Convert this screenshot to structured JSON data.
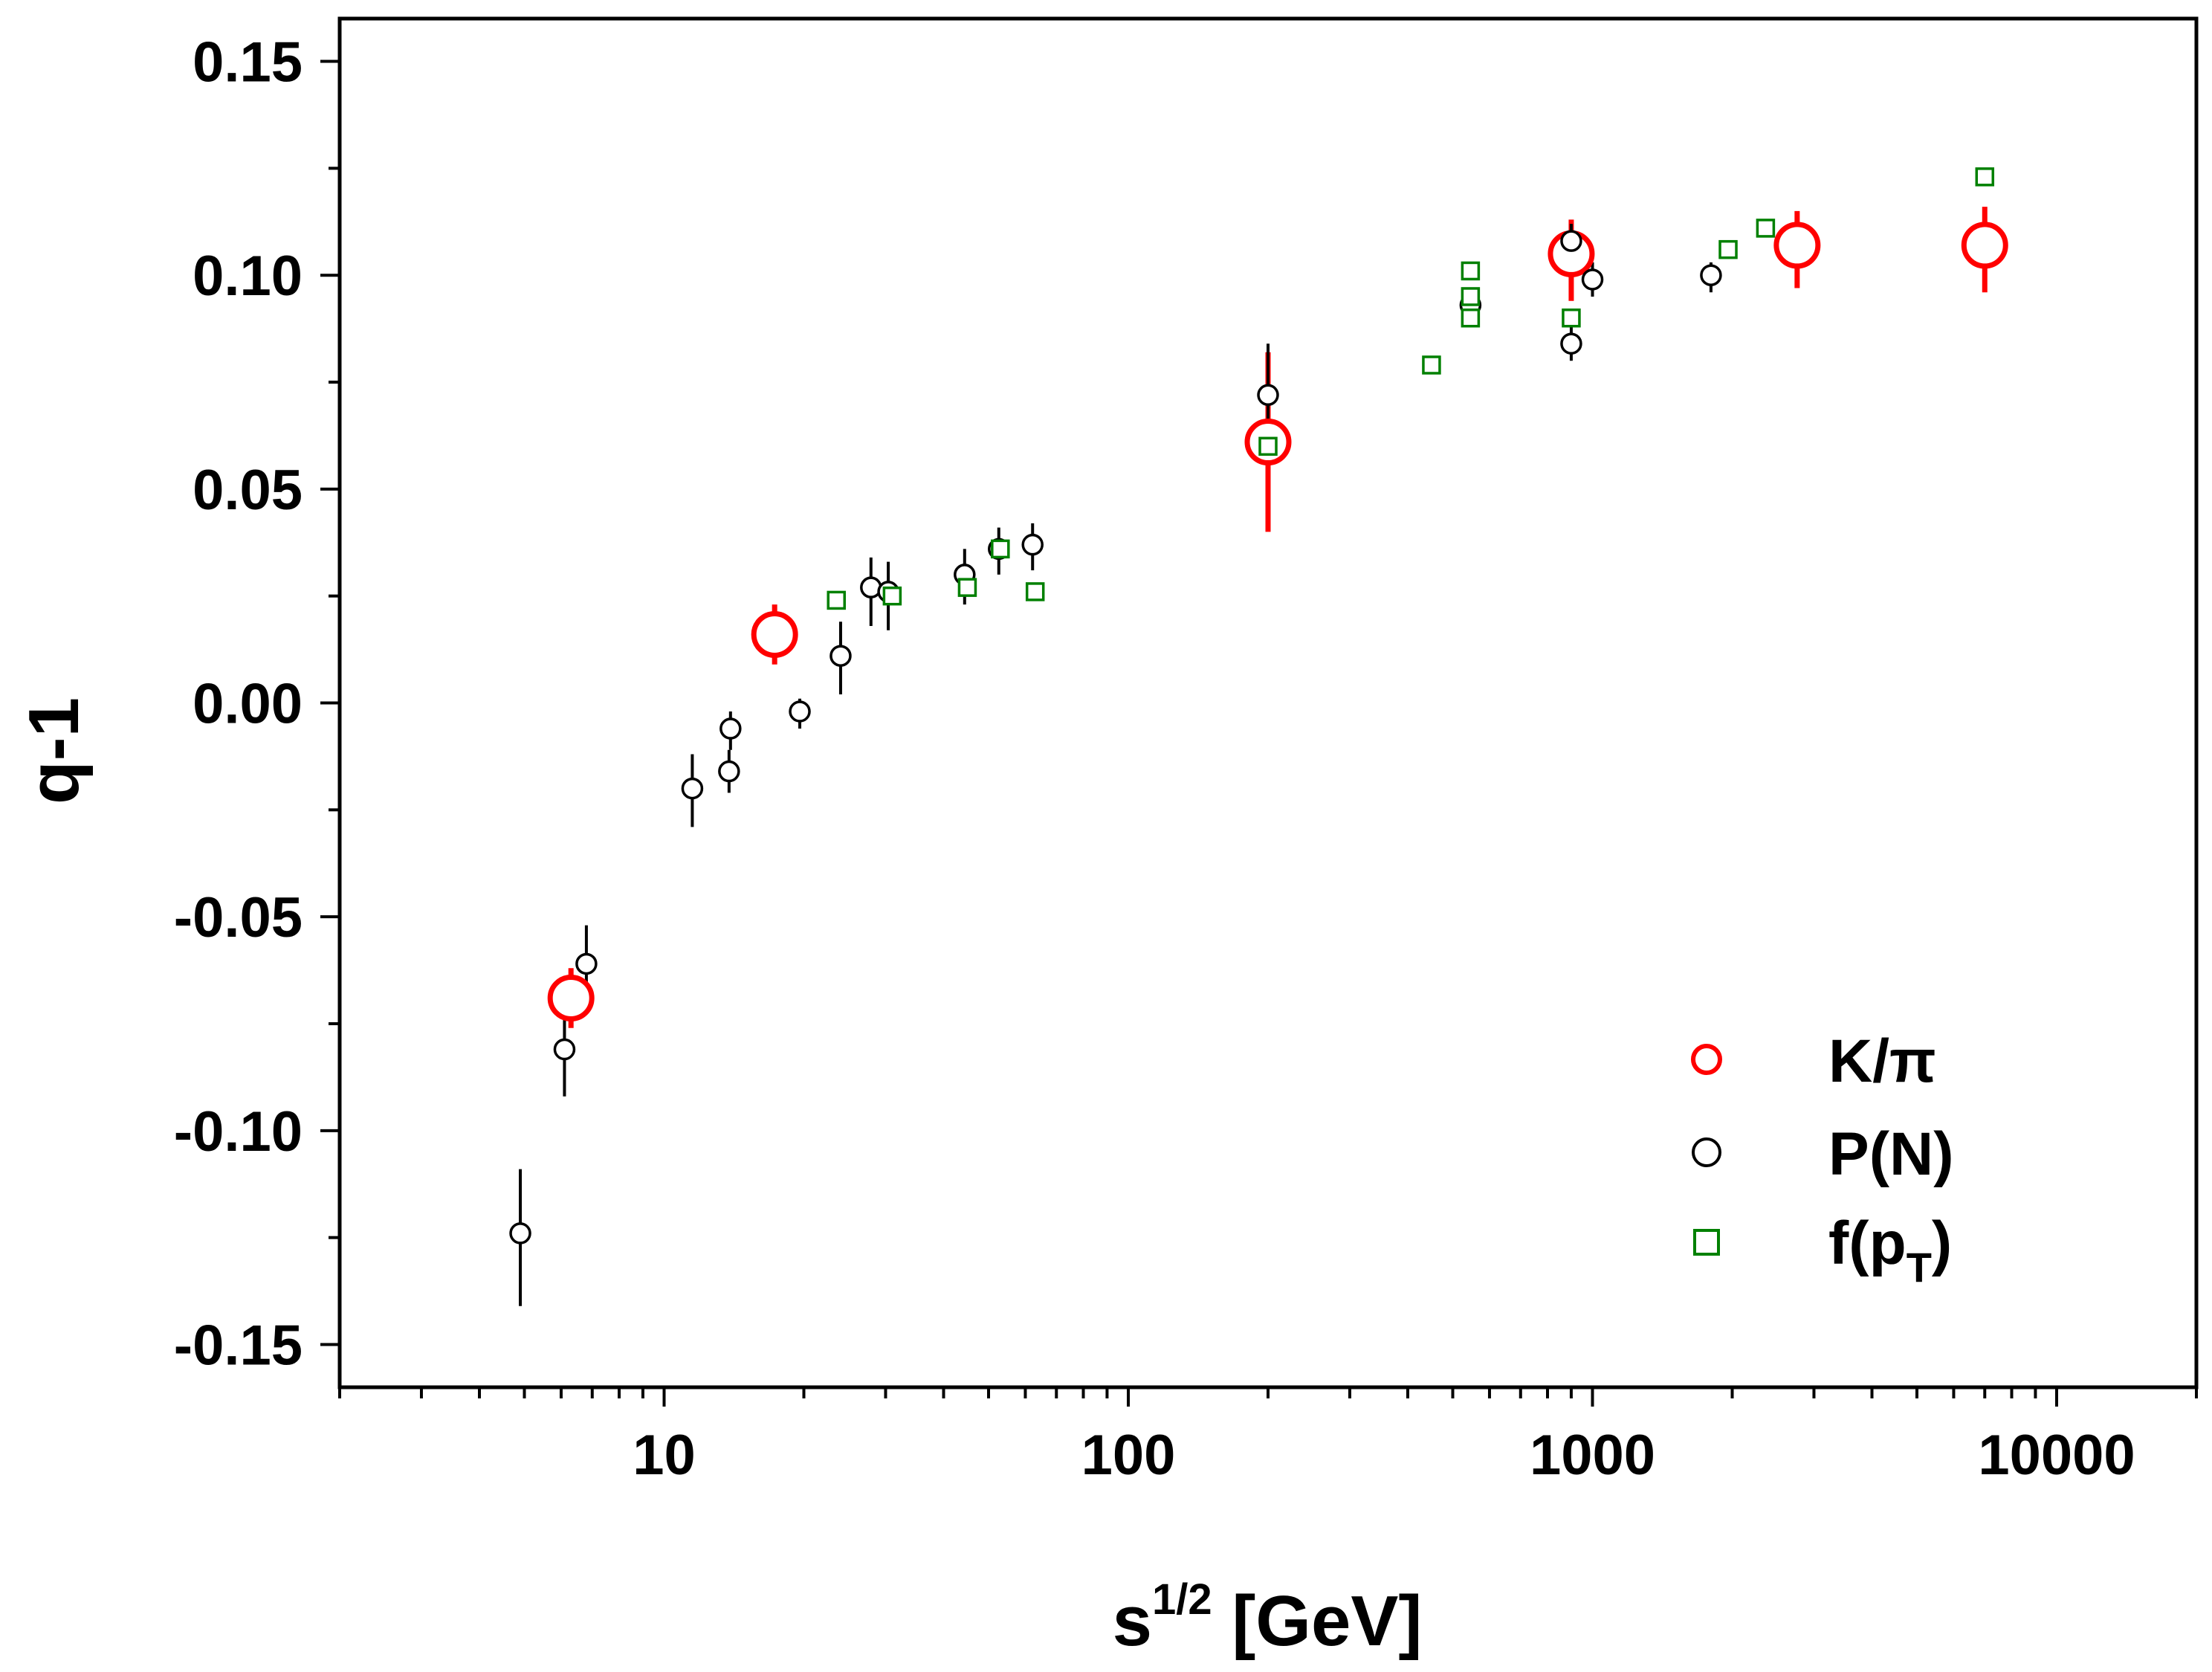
{
  "chart_data": {
    "type": "scatter",
    "xscale": "log",
    "xlim": [
      2,
      20000
    ],
    "ylim": [
      -0.16,
      0.16
    ],
    "xticks": [
      10,
      100,
      1000,
      10000
    ],
    "xtick_labels": [
      "10",
      "100",
      "1000",
      "10000"
    ],
    "yticks": [
      -0.15,
      -0.1,
      -0.05,
      0.0,
      0.05,
      0.1,
      0.15
    ],
    "ytick_labels": [
      "-0.15",
      "-0.10",
      "-0.05",
      "0.00",
      "0.05",
      "0.10",
      "0.15"
    ],
    "ylabel": "q-1",
    "xlabel": {
      "base": "s",
      "sup": "1/2",
      "unit": " [GeV]"
    },
    "legend": {
      "position": "bottom-right",
      "items": [
        {
          "key": "kpi",
          "label": "K/π"
        },
        {
          "key": "pn",
          "label": "P(N)"
        },
        {
          "key": "fpt",
          "label": "f(p",
          "sub": "T",
          "close": ")"
        }
      ]
    },
    "series": [
      {
        "name": "K/π",
        "key": "kpi",
        "marker": "circle-large",
        "color": "#ff0000",
        "points": [
          {
            "x": 6.3,
            "y": -0.069,
            "lo": -0.076,
            "hi": -0.062
          },
          {
            "x": 17.3,
            "y": 0.016,
            "lo": 0.009,
            "hi": 0.023
          },
          {
            "x": 200,
            "y": 0.061,
            "lo": 0.04,
            "hi": 0.082
          },
          {
            "x": 900,
            "y": 0.105,
            "lo": 0.094,
            "hi": 0.113
          },
          {
            "x": 2760,
            "y": 0.107,
            "lo": 0.097,
            "hi": 0.115
          },
          {
            "x": 7000,
            "y": 0.107,
            "lo": 0.096,
            "hi": 0.116
          }
        ]
      },
      {
        "name": "P(N)",
        "key": "pn",
        "marker": "circle-small",
        "color": "#000000",
        "points": [
          {
            "x": 4.9,
            "y": -0.124,
            "lo": -0.141,
            "hi": -0.109
          },
          {
            "x": 6.1,
            "y": -0.081,
            "lo": -0.092,
            "hi": -0.071
          },
          {
            "x": 6.8,
            "y": -0.061,
            "lo": -0.07,
            "hi": -0.052
          },
          {
            "x": 11.5,
            "y": -0.02,
            "lo": -0.029,
            "hi": -0.012
          },
          {
            "x": 13.8,
            "y": -0.016,
            "lo": -0.021,
            "hi": -0.011
          },
          {
            "x": 13.9,
            "y": -0.006,
            "lo": -0.011,
            "hi": -0.002
          },
          {
            "x": 19.6,
            "y": -0.002,
            "lo": -0.006,
            "hi": 0.001
          },
          {
            "x": 24.0,
            "y": 0.011,
            "lo": 0.002,
            "hi": 0.019
          },
          {
            "x": 27.9,
            "y": 0.027,
            "lo": 0.018,
            "hi": 0.034
          },
          {
            "x": 30.4,
            "y": 0.026,
            "lo": 0.017,
            "hi": 0.033
          },
          {
            "x": 44.4,
            "y": 0.03,
            "lo": 0.023,
            "hi": 0.036
          },
          {
            "x": 52.6,
            "y": 0.036,
            "lo": 0.03,
            "hi": 0.041
          },
          {
            "x": 62.2,
            "y": 0.037,
            "lo": 0.031,
            "hi": 0.042
          },
          {
            "x": 200,
            "y": 0.072,
            "lo": 0.062,
            "hi": 0.084
          },
          {
            "x": 546,
            "y": 0.093,
            "lo": 0.09,
            "hi": 0.095
          },
          {
            "x": 900,
            "y": 0.084,
            "lo": 0.08,
            "hi": 0.088
          },
          {
            "x": 900,
            "y": 0.108,
            "lo": 0.104,
            "hi": 0.112
          },
          {
            "x": 1000,
            "y": 0.099,
            "lo": 0.095,
            "hi": 0.103
          },
          {
            "x": 1800,
            "y": 0.1,
            "lo": 0.096,
            "hi": 0.103
          }
        ]
      },
      {
        "name": "f(pT)",
        "key": "fpt",
        "marker": "square",
        "color": "#008000",
        "points": [
          {
            "x": 23.5,
            "y": 0.024
          },
          {
            "x": 31.0,
            "y": 0.025
          },
          {
            "x": 45.0,
            "y": 0.027
          },
          {
            "x": 53.0,
            "y": 0.036
          },
          {
            "x": 63.0,
            "y": 0.026
          },
          {
            "x": 200,
            "y": 0.06
          },
          {
            "x": 450,
            "y": 0.079
          },
          {
            "x": 546,
            "y": 0.09
          },
          {
            "x": 546,
            "y": 0.095
          },
          {
            "x": 546,
            "y": 0.101
          },
          {
            "x": 900,
            "y": 0.09
          },
          {
            "x": 1960,
            "y": 0.106
          },
          {
            "x": 2360,
            "y": 0.111
          },
          {
            "x": 7000,
            "y": 0.123
          }
        ]
      }
    ]
  }
}
